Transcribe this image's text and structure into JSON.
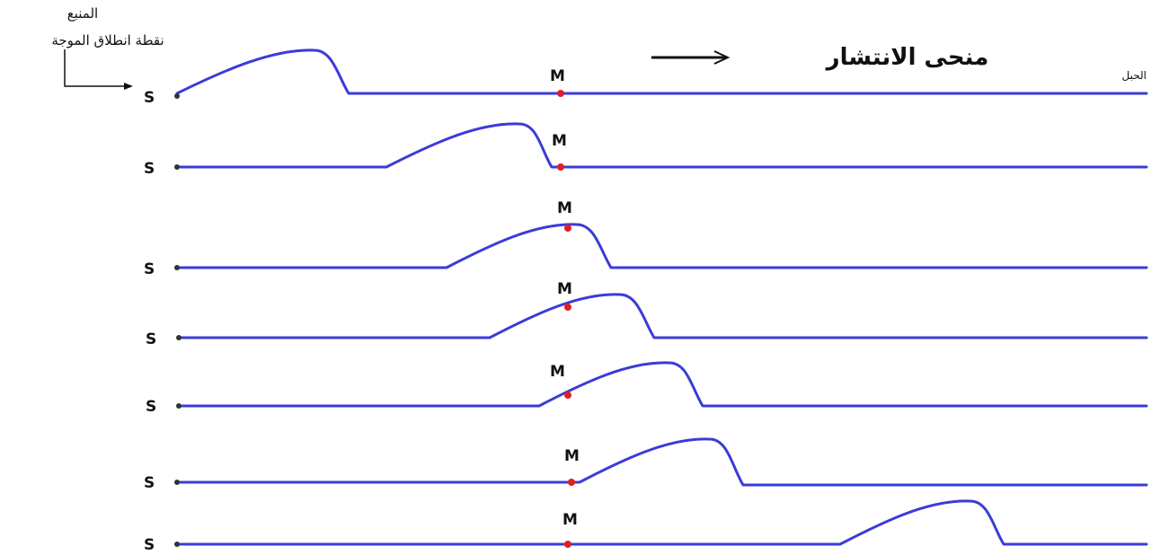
{
  "labels": {
    "source_ar": "المنبع",
    "start_point_ar": "نقطة انطلاق الموجة",
    "propagation_ar": "منحى الانتشار",
    "rope_ar": "الحبل"
  },
  "point_labels": {
    "source": "S",
    "point": "M"
  },
  "colors": {
    "rope": "#3b3bd8",
    "point_m": "#e02020",
    "source_dot": "#333333"
  },
  "snapshots": [
    {
      "index": 1,
      "pulse_start": 197,
      "pulse_peak": 350,
      "pulse_end": 388
    },
    {
      "index": 2,
      "pulse_start": 430,
      "pulse_peak": 578,
      "pulse_end": 614
    },
    {
      "index": 3,
      "pulse_start": 497,
      "pulse_peak": 642,
      "pulse_end": 680
    },
    {
      "index": 4,
      "pulse_start": 545,
      "pulse_peak": 690,
      "pulse_end": 728
    },
    {
      "index": 5,
      "pulse_start": 600,
      "pulse_peak": 745,
      "pulse_end": 782
    },
    {
      "index": 6,
      "pulse_start": 645,
      "pulse_peak": 790,
      "pulse_end": 827
    },
    {
      "index": 7,
      "pulse_start": 935,
      "pulse_peak": 1080,
      "pulse_end": 1117
    }
  ]
}
